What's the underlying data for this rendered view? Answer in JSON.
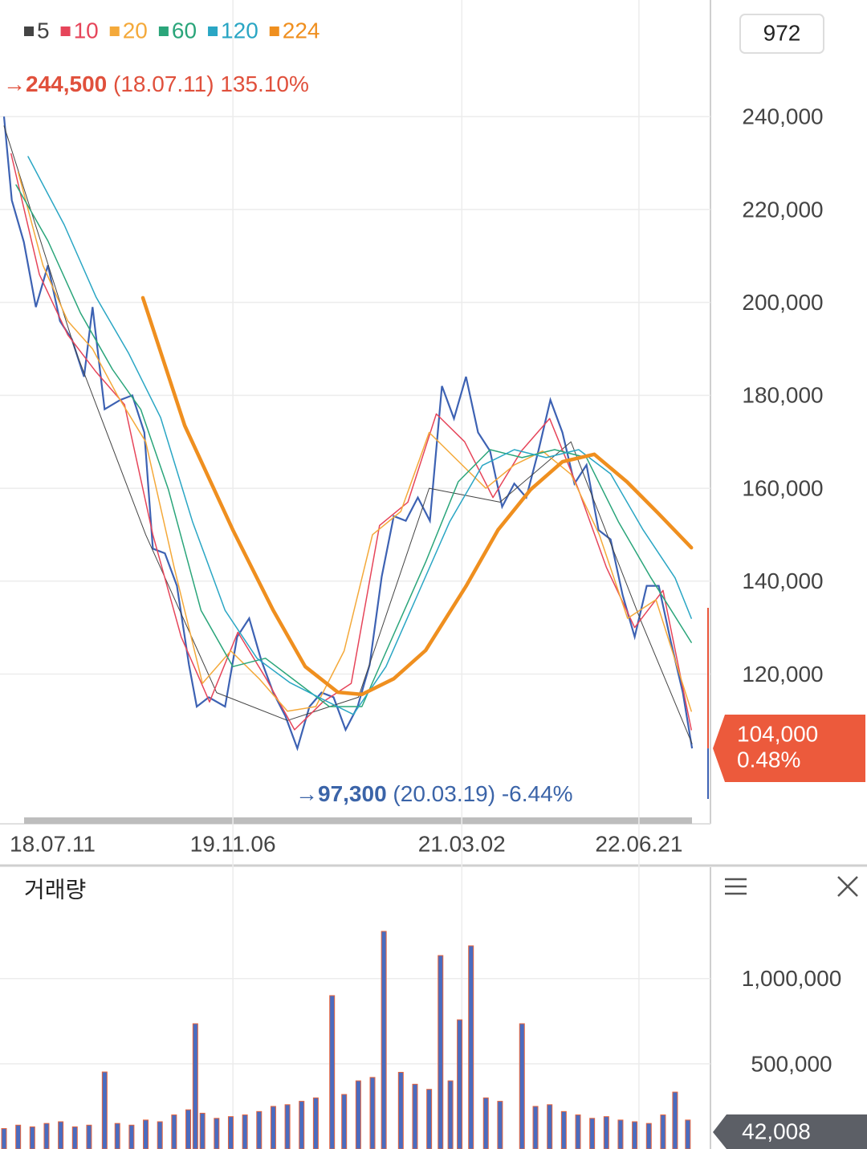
{
  "chart_data": [
    {
      "type": "line",
      "count_label": 972,
      "price": {
        "color": "#3d62b3",
        "x": [
          0,
          11,
          28,
          45,
          62,
          79,
          96,
          113,
          125,
          142,
          164,
          181,
          198,
          210,
          227,
          244,
          261,
          272,
          289,
          312,
          329,
          346,
          363,
          380,
          397,
          414,
          431,
          448,
          465,
          482,
          499,
          516,
          533,
          550,
          567,
          584,
          601,
          618,
          635,
          652,
          669,
          686,
          703,
          720,
          737,
          754,
          771,
          788,
          805,
          822,
          839,
          856,
          873,
          890,
          907,
          924,
          941,
          958,
          971
        ],
        "values": [
          240000,
          222000,
          213000,
          199000,
          208000,
          196000,
          192000,
          184000,
          199000,
          177000,
          179000,
          180000,
          172000,
          147000,
          146000,
          139000,
          122000,
          113000,
          115000,
          113000,
          128000,
          132000,
          123000,
          116000,
          111000,
          104000,
          113000,
          116000,
          115000,
          108000,
          113000,
          122000,
          141000,
          154000,
          153000,
          158000,
          153000,
          182000,
          175000,
          184000,
          172000,
          168000,
          156000,
          161000,
          158000,
          168000,
          179000,
          172000,
          161000,
          165000,
          151000,
          149000,
          137000,
          128000,
          139000,
          139000,
          127000,
          116000,
          104000
        ]
      },
      "series": [
        {
          "name": "5",
          "color": "#444444",
          "width": 1,
          "x": [
            0,
            100,
            200,
            300,
            400,
            500,
            600,
            700,
            800,
            900,
            971
          ],
          "values": [
            238000,
            190000,
            150000,
            116000,
            110000,
            115000,
            160000,
            157000,
            170000,
            131000,
            105000
          ]
        },
        {
          "name": "10",
          "color": "#e6455a",
          "width": 1.5,
          "x": [
            10,
            50,
            90,
            130,
            170,
            210,
            250,
            290,
            330,
            370,
            410,
            450,
            490,
            530,
            570,
            610,
            650,
            690,
            730,
            770,
            810,
            850,
            890,
            930,
            970
          ],
          "values": [
            232000,
            206000,
            193000,
            185000,
            178000,
            150000,
            128000,
            114000,
            129000,
            119000,
            108000,
            114000,
            118000,
            152000,
            157000,
            176000,
            170000,
            158000,
            168000,
            175000,
            160000,
            143000,
            130000,
            138000,
            108000
          ]
        },
        {
          "name": "20",
          "color": "#f4a93a",
          "width": 1.5,
          "x": [
            20,
            55,
            90,
            125,
            160,
            200,
            240,
            280,
            320,
            360,
            400,
            440,
            480,
            520,
            560,
            600,
            640,
            680,
            720,
            760,
            800,
            840,
            880,
            920,
            970
          ],
          "values": [
            228000,
            208000,
            196000,
            190000,
            180000,
            170000,
            143000,
            118000,
            125000,
            119000,
            112000,
            113000,
            125000,
            150000,
            155000,
            172000,
            166000,
            160000,
            165000,
            168000,
            163000,
            150000,
            132000,
            136000,
            112000
          ]
        },
        {
          "name": "60",
          "color": "#2aa57a",
          "width": 1.5,
          "x": [
            17,
            62,
            108,
            153,
            193,
            232,
            278,
            323,
            369,
            414,
            459,
            505,
            550,
            595,
            641,
            686,
            731,
            777,
            822,
            867,
            913,
            970
          ],
          "values": [
            225300,
            213250,
            197700,
            185600,
            176950,
            159700,
            133700,
            121600,
            123400,
            118200,
            113000,
            113000,
            128550,
            144100,
            161400,
            168300,
            166600,
            168300,
            166600,
            152800,
            140700,
            126800
          ]
        },
        {
          "name": "120",
          "color": "#2aa6c4",
          "width": 1.5,
          "x": [
            34,
            85,
            130,
            176,
            221,
            266,
            312,
            357,
            403,
            448,
            493,
            539,
            584,
            629,
            675,
            720,
            765,
            811,
            856,
            902,
            947,
            970
          ],
          "values": [
            231400,
            216700,
            201100,
            189000,
            175200,
            152800,
            133700,
            123400,
            118200,
            114700,
            111300,
            121600,
            137200,
            152800,
            164900,
            168300,
            166600,
            168300,
            163100,
            151000,
            140700,
            132000
          ]
        },
        {
          "name": "224",
          "color": "#ef8f1f",
          "width": 4.5,
          "x": [
            196,
            255,
            323,
            380,
            425,
            471,
            505,
            550,
            595,
            652,
            697,
            743,
            788,
            833,
            879,
            924,
            970
          ],
          "values": [
            201000,
            173500,
            151000,
            133700,
            121600,
            116100,
            115600,
            119000,
            125100,
            138900,
            151000,
            159700,
            165700,
            167300,
            161400,
            154500,
            147200
          ]
        }
      ],
      "xlim": [
        0,
        972
      ],
      "xticks": [
        {
          "value": 0,
          "label": "18.07.11"
        },
        {
          "value": 323,
          "label": "19.11.06"
        },
        {
          "value": 646,
          "label": "21.03.02"
        },
        {
          "value": 896,
          "label": "22.06.21"
        }
      ],
      "ylim": [
        88800,
        265100
      ],
      "yticks": [
        {
          "value": 120000,
          "label": "120,000"
        },
        {
          "value": 140000,
          "label": "140,000"
        },
        {
          "value": 160000,
          "label": "160,000"
        },
        {
          "value": 180000,
          "label": "180,000"
        },
        {
          "value": 200000,
          "label": "200,000"
        },
        {
          "value": 220000,
          "label": "220,000"
        },
        {
          "value": 240000,
          "label": "240,000"
        }
      ],
      "high": {
        "value": 244500,
        "label": "244,500",
        "date": "(18.07.11)",
        "change": "135.10%"
      },
      "low": {
        "value": 97300,
        "label": "97,300",
        "date": "(20.03.19)",
        "change": "-6.44%"
      },
      "last": {
        "value": 104000,
        "label": "104,000",
        "change": "0.48%"
      }
    },
    {
      "type": "bar",
      "title": "거래량",
      "color": "#4a6cc0",
      "accent": "#e8643c",
      "x": [
        0,
        20,
        40,
        60,
        80,
        100,
        120,
        142,
        160,
        180,
        200,
        220,
        240,
        260,
        270,
        280,
        300,
        320,
        340,
        360,
        380,
        400,
        420,
        440,
        463,
        480,
        500,
        520,
        536,
        560,
        580,
        600,
        616,
        630,
        643,
        659,
        680,
        700,
        731,
        750,
        770,
        790,
        810,
        830,
        850,
        870,
        890,
        910,
        930,
        947,
        965
      ],
      "values": [
        120000,
        140000,
        130000,
        150000,
        160000,
        130000,
        140000,
        452000,
        150000,
        140000,
        170000,
        160000,
        200000,
        230000,
        735000,
        210000,
        180000,
        190000,
        200000,
        220000,
        250000,
        260000,
        280000,
        300000,
        900000,
        320000,
        400000,
        420000,
        1277000,
        450000,
        380000,
        350000,
        1135000,
        400000,
        758000,
        1192000,
        300000,
        280000,
        735000,
        250000,
        260000,
        220000,
        200000,
        180000,
        190000,
        170000,
        160000,
        150000,
        200000,
        334000,
        170000
      ],
      "xlim": [
        0,
        972
      ],
      "ylim": [
        0,
        1630000
      ],
      "yticks": [
        {
          "value": 500000,
          "label": "500,000"
        },
        {
          "value": 1000000,
          "label": "1,000,000"
        }
      ],
      "last": {
        "value": 42008,
        "label": "42,008"
      }
    }
  ]
}
